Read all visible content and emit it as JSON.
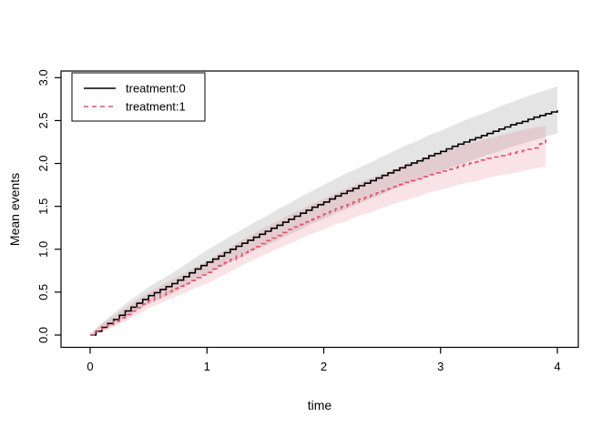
{
  "chart_data": {
    "type": "line",
    "title": "",
    "xlabel": "time",
    "ylabel": "Mean events",
    "xlim": [
      0,
      4
    ],
    "ylim": [
      0,
      3
    ],
    "grid": false,
    "legend_position": "top-left",
    "x_axis": {
      "ticks": [
        0,
        1,
        2,
        3,
        4
      ],
      "tick_labels": [
        "0",
        "1",
        "2",
        "3",
        "4"
      ]
    },
    "y_axis": {
      "ticks": [
        0,
        0.5,
        1,
        1.5,
        2,
        2.5,
        3
      ],
      "tick_labels": [
        "0.0",
        "0.5",
        "1.0",
        "1.5",
        "2.0",
        "2.5",
        "3.0"
      ]
    },
    "series": [
      {
        "name": "treatment:0",
        "line_style": "solid",
        "color": "#000000",
        "band_color": "#BEBEBE",
        "band_opacity": 0.42,
        "x": [
          0,
          0.1,
          0.2,
          0.3,
          0.4,
          0.5,
          0.6,
          0.7,
          0.8,
          0.9,
          1.0,
          1.1,
          1.2,
          1.3,
          1.4,
          1.5,
          1.6,
          1.7,
          1.8,
          1.9,
          2.0,
          2.1,
          2.2,
          2.3,
          2.4,
          2.5,
          2.6,
          2.7,
          2.8,
          2.9,
          3.0,
          3.1,
          3.2,
          3.3,
          3.4,
          3.5,
          3.6,
          3.7,
          3.8,
          3.9,
          4.0
        ],
        "y": [
          0,
          0.09,
          0.18,
          0.28,
          0.37,
          0.46,
          0.53,
          0.6,
          0.68,
          0.77,
          0.85,
          0.92,
          1.0,
          1.07,
          1.14,
          1.21,
          1.28,
          1.35,
          1.42,
          1.49,
          1.55,
          1.62,
          1.68,
          1.74,
          1.8,
          1.86,
          1.92,
          1.98,
          2.03,
          2.09,
          2.14,
          2.2,
          2.25,
          2.3,
          2.35,
          2.4,
          2.45,
          2.49,
          2.54,
          2.58,
          2.62
        ],
        "upper": [
          0.01,
          0.14,
          0.25,
          0.36,
          0.46,
          0.56,
          0.64,
          0.72,
          0.81,
          0.9,
          0.99,
          1.07,
          1.15,
          1.23,
          1.31,
          1.38,
          1.46,
          1.53,
          1.61,
          1.68,
          1.75,
          1.82,
          1.89,
          1.95,
          2.01,
          2.08,
          2.14,
          2.21,
          2.26,
          2.33,
          2.38,
          2.44,
          2.5,
          2.55,
          2.6,
          2.66,
          2.71,
          2.76,
          2.81,
          2.85,
          2.9
        ],
        "lower": [
          0,
          0.04,
          0.12,
          0.2,
          0.28,
          0.36,
          0.42,
          0.48,
          0.55,
          0.64,
          0.71,
          0.77,
          0.85,
          0.91,
          0.98,
          1.04,
          1.1,
          1.17,
          1.23,
          1.3,
          1.35,
          1.42,
          1.47,
          1.53,
          1.59,
          1.64,
          1.7,
          1.75,
          1.8,
          1.86,
          1.9,
          1.96,
          2.0,
          2.05,
          2.1,
          2.14,
          2.19,
          2.23,
          2.27,
          2.31,
          2.35
        ]
      },
      {
        "name": "treatment:1",
        "line_style": "dashed",
        "color": "#DF536B",
        "band_color": "#DF536B",
        "band_opacity": 0.16,
        "x": [
          0,
          0.1,
          0.2,
          0.3,
          0.4,
          0.5,
          0.6,
          0.7,
          0.8,
          0.9,
          1.0,
          1.1,
          1.2,
          1.3,
          1.4,
          1.5,
          1.6,
          1.7,
          1.8,
          1.9,
          2.0,
          2.1,
          2.2,
          2.3,
          2.4,
          2.5,
          2.6,
          2.7,
          2.8,
          2.9,
          3.0,
          3.1,
          3.2,
          3.3,
          3.4,
          3.5,
          3.6,
          3.7,
          3.8,
          3.9
        ],
        "y": [
          0,
          0.08,
          0.16,
          0.24,
          0.32,
          0.4,
          0.47,
          0.54,
          0.6,
          0.67,
          0.73,
          0.81,
          0.88,
          0.96,
          1.03,
          1.1,
          1.16,
          1.23,
          1.29,
          1.35,
          1.41,
          1.47,
          1.52,
          1.58,
          1.63,
          1.68,
          1.73,
          1.78,
          1.82,
          1.87,
          1.91,
          1.95,
          1.99,
          2.02,
          2.06,
          2.09,
          2.12,
          2.15,
          2.18,
          2.28
        ],
        "upper": [
          0.01,
          0.13,
          0.22,
          0.32,
          0.41,
          0.5,
          0.57,
          0.65,
          0.72,
          0.79,
          0.86,
          0.95,
          1.02,
          1.11,
          1.18,
          1.26,
          1.32,
          1.4,
          1.46,
          1.53,
          1.59,
          1.65,
          1.71,
          1.77,
          1.83,
          1.88,
          1.93,
          1.99,
          2.03,
          2.08,
          2.13,
          2.17,
          2.22,
          2.25,
          2.29,
          2.32,
          2.36,
          2.39,
          2.42,
          2.44
        ],
        "lower": [
          0,
          0.03,
          0.1,
          0.16,
          0.23,
          0.31,
          0.37,
          0.43,
          0.48,
          0.55,
          0.6,
          0.67,
          0.74,
          0.81,
          0.88,
          0.94,
          1.0,
          1.06,
          1.12,
          1.18,
          1.23,
          1.29,
          1.33,
          1.39,
          1.43,
          1.48,
          1.53,
          1.57,
          1.61,
          1.66,
          1.69,
          1.73,
          1.77,
          1.79,
          1.83,
          1.86,
          1.88,
          1.91,
          1.94,
          1.96
        ]
      }
    ]
  },
  "legend": {
    "items": [
      {
        "label": "treatment:0",
        "line_style": "solid",
        "color": "#000000"
      },
      {
        "label": "treatment:1",
        "line_style": "dashed",
        "color": "#DF536B"
      }
    ]
  },
  "colors": {
    "background": "#FFFFFF",
    "axis": "#000000",
    "band_treatment0": "#BEBEBE",
    "band_treatment1": "#DF536B"
  }
}
